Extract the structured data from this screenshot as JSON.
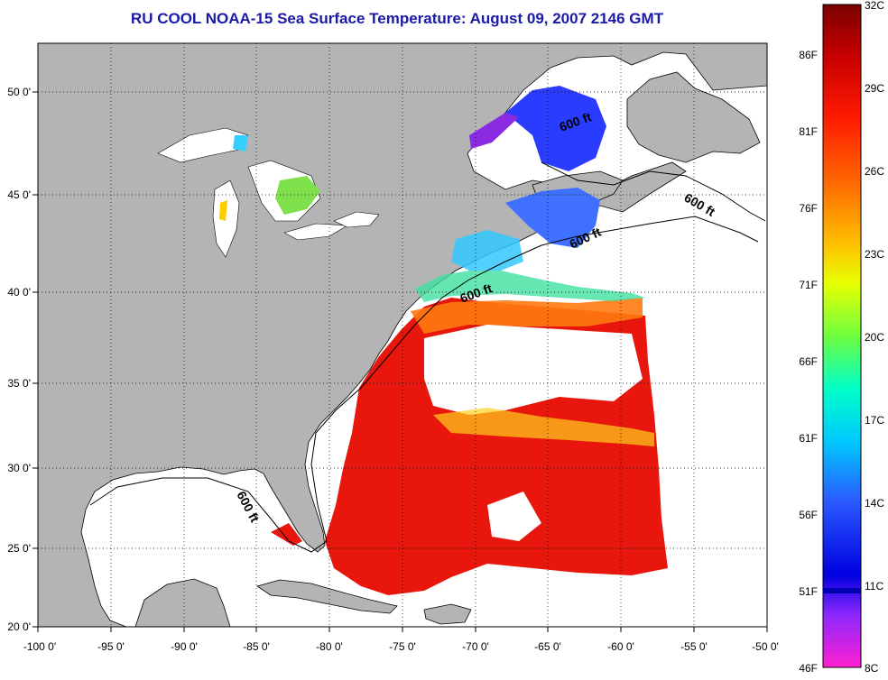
{
  "title": "RU COOL  NOAA-15  Sea Surface Temperature:  August 09, 2007 2146 GMT",
  "map": {
    "lon_ticks": [
      "-100 0'",
      "-95 0'",
      "-90 0'",
      "-85 0'",
      "-80 0'",
      "-75 0'",
      "-70 0'",
      "-65 0'",
      "-60 0'",
      "-55 0'",
      "-50 0'"
    ],
    "lat_ticks": [
      "50 0'",
      "45 0'",
      "40 0'",
      "35 0'",
      "30 0'",
      "25 0'",
      "20 0'"
    ],
    "contour_label": "600 ft",
    "colors": {
      "land": "#b4b4b4",
      "ocean": "#ffffff",
      "warm": "#e8160c",
      "cool": "#2a3cff"
    }
  },
  "colorbar": {
    "celsius": [
      "32C",
      "29C",
      "26C",
      "23C",
      "20C",
      "17C",
      "14C",
      "11C",
      "8C"
    ],
    "fahrenheit": [
      "86F",
      "81F",
      "76F",
      "71F",
      "66F",
      "61F",
      "56F",
      "51F",
      "46F"
    ]
  }
}
